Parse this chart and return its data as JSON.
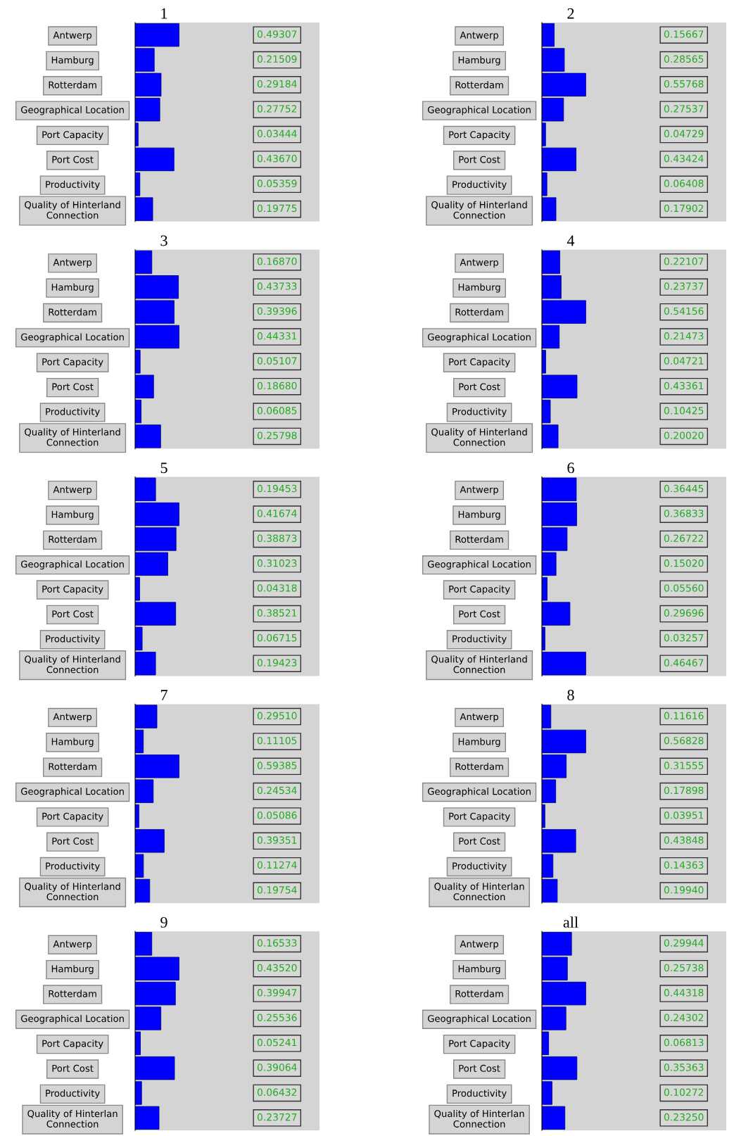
{
  "chart_data": [
    {
      "type": "bar",
      "title": "1",
      "orientation": "horizontal",
      "tick_labels": "y",
      "grid": false,
      "color": "#0000ff",
      "categories": [
        "Antwerp",
        "Hamburg",
        "Rotterdam",
        "Geographical Location",
        "Port Capacity",
        "Port Cost",
        "Productivity",
        "Quality of Hinterland\nConnection"
      ],
      "values": [
        0.49307,
        0.21509,
        0.29184,
        0.27752,
        0.03444,
        0.4367,
        0.05359,
        0.19775
      ],
      "value_labels": [
        "0.49307",
        "0.21509",
        "0.29184",
        "0.27752",
        "0.03444",
        "0.43670",
        "0.05359",
        "0.19775"
      ]
    },
    {
      "type": "bar",
      "title": "2",
      "orientation": "horizontal",
      "tick_labels": "y",
      "grid": false,
      "color": "#0000ff",
      "categories": [
        "Antwerp",
        "Hamburg",
        "Rotterdam",
        "Geographical Location",
        "Port Capacity",
        "Port Cost",
        "Productivity",
        "Quality of Hinterland\nConnection"
      ],
      "values": [
        0.15667,
        0.28565,
        0.55768,
        0.27537,
        0.04729,
        0.43424,
        0.06408,
        0.17902
      ],
      "value_labels": [
        "0.15667",
        "0.28565",
        "0.55768",
        "0.27537",
        "0.04729",
        "0.43424",
        "0.06408",
        "0.17902"
      ]
    },
    {
      "type": "bar",
      "title": "3",
      "orientation": "horizontal",
      "tick_labels": "y",
      "grid": false,
      "color": "#0000ff",
      "categories": [
        "Antwerp",
        "Hamburg",
        "Rotterdam",
        "Geographical Location",
        "Port Capacity",
        "Port Cost",
        "Productivity",
        "Quality of Hinterland\nConnection"
      ],
      "values": [
        0.1687,
        0.43733,
        0.39396,
        0.44331,
        0.05107,
        0.1868,
        0.06085,
        0.25798
      ],
      "value_labels": [
        "0.16870",
        "0.43733",
        "0.39396",
        "0.44331",
        "0.05107",
        "0.18680",
        "0.06085",
        "0.25798"
      ]
    },
    {
      "type": "bar",
      "title": "4",
      "orientation": "horizontal",
      "tick_labels": "y",
      "grid": false,
      "color": "#0000ff",
      "categories": [
        "Antwerp",
        "Hamburg",
        "Rotterdam",
        "Geographical Location",
        "Port Capacity",
        "Port Cost",
        "Productivity",
        "Quality of Hinterland\nConnection"
      ],
      "values": [
        0.22107,
        0.23737,
        0.54156,
        0.21473,
        0.04721,
        0.43361,
        0.10425,
        0.2002
      ],
      "value_labels": [
        "0.22107",
        "0.23737",
        "0.54156",
        "0.21473",
        "0.04721",
        "0.43361",
        "0.10425",
        "0.20020"
      ]
    },
    {
      "type": "bar",
      "title": "5",
      "orientation": "horizontal",
      "tick_labels": "y",
      "grid": false,
      "color": "#0000ff",
      "categories": [
        "Antwerp",
        "Hamburg",
        "Rotterdam",
        "Geographical Location",
        "Port Capacity",
        "Port Cost",
        "Productivity",
        "Quality of Hinterland\nConnection"
      ],
      "values": [
        0.19453,
        0.41674,
        0.38873,
        0.31023,
        0.04318,
        0.38521,
        0.06715,
        0.19423
      ],
      "value_labels": [
        "0.19453",
        "0.41674",
        "0.38873",
        "0.31023",
        "0.04318",
        "0.38521",
        "0.06715",
        "0.19423"
      ]
    },
    {
      "type": "bar",
      "title": "6",
      "orientation": "horizontal",
      "tick_labels": "y",
      "grid": false,
      "color": "#0000ff",
      "categories": [
        "Antwerp",
        "Hamburg",
        "Rotterdam",
        "Geographical Location",
        "Port Capacity",
        "Port Cost",
        "Productivity",
        "Quality of Hinterland\nConnection"
      ],
      "values": [
        0.36445,
        0.36833,
        0.26722,
        0.1502,
        0.0556,
        0.29696,
        0.03257,
        0.46467
      ],
      "value_labels": [
        "0.36445",
        "0.36833",
        "0.26722",
        "0.15020",
        "0.05560",
        "0.29696",
        "0.03257",
        "0.46467"
      ]
    },
    {
      "type": "bar",
      "title": "7",
      "orientation": "horizontal",
      "tick_labels": "y",
      "grid": false,
      "color": "#0000ff",
      "categories": [
        "Antwerp",
        "Hamburg",
        "Rotterdam",
        "Geographical Location",
        "Port Capacity",
        "Port Cost",
        "Productivity",
        "Quality of Hinterland\nConnection"
      ],
      "values": [
        0.2951,
        0.11105,
        0.59385,
        0.24534,
        0.05086,
        0.39351,
        0.11274,
        0.19754
      ],
      "value_labels": [
        "0.29510",
        "0.11105",
        "0.59385",
        "0.24534",
        "0.05086",
        "0.39351",
        "0.11274",
        "0.19754"
      ]
    },
    {
      "type": "bar",
      "title": "8",
      "orientation": "horizontal",
      "tick_labels": "y",
      "grid": false,
      "color": "#0000ff",
      "categories": [
        "Antwerp",
        "Hamburg",
        "Rotterdam",
        "Geographical Location",
        "Port Capacity",
        "Port Cost",
        "Productivity",
        "Quality of Hinterlan\nConnection"
      ],
      "values": [
        0.11616,
        0.56828,
        0.31555,
        0.17898,
        0.03951,
        0.43848,
        0.14363,
        0.1994
      ],
      "value_labels": [
        "0.11616",
        "0.56828",
        "0.31555",
        "0.17898",
        "0.03951",
        "0.43848",
        "0.14363",
        "0.19940"
      ]
    },
    {
      "type": "bar",
      "title": "9",
      "orientation": "horizontal",
      "tick_labels": "y",
      "grid": false,
      "color": "#0000ff",
      "categories": [
        "Antwerp",
        "Hamburg",
        "Rotterdam",
        "Geographical Location",
        "Port Capacity",
        "Port Cost",
        "Productivity",
        "Quality of Hinterlan\nConnection"
      ],
      "values": [
        0.16533,
        0.4352,
        0.39947,
        0.25536,
        0.05241,
        0.39064,
        0.06432,
        0.23727
      ],
      "value_labels": [
        "0.16533",
        "0.43520",
        "0.39947",
        "0.25536",
        "0.05241",
        "0.39064",
        "0.06432",
        "0.23727"
      ]
    },
    {
      "type": "bar",
      "title": "all",
      "orientation": "horizontal",
      "tick_labels": "y",
      "grid": false,
      "color": "#0000ff",
      "categories": [
        "Antwerp",
        "Hamburg",
        "Rotterdam",
        "Geographical Location",
        "Port Capacity",
        "Port Cost",
        "Productivity",
        "Quality of Hinterlan\nConnection"
      ],
      "values": [
        0.29944,
        0.25738,
        0.44318,
        0.24302,
        0.06813,
        0.35363,
        0.10272,
        0.2325
      ],
      "value_labels": [
        "0.29944",
        "0.25738",
        "0.44318",
        "0.24302",
        "0.06813",
        "0.35363",
        "0.10272",
        "0.23250"
      ]
    }
  ]
}
